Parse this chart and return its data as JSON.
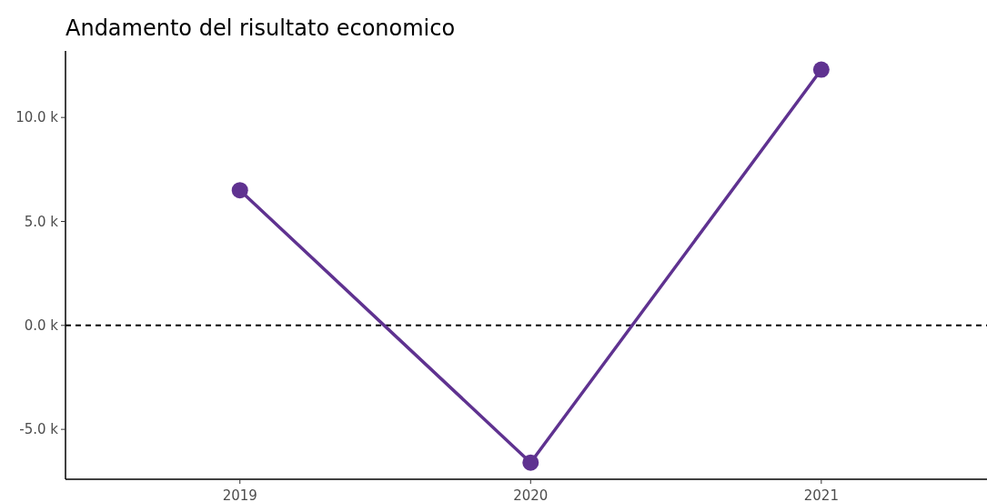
{
  "chart_data": {
    "type": "line",
    "title": "Andamento del risultato economico",
    "categories": [
      "2019",
      "2020",
      "2021"
    ],
    "series": [
      {
        "color": "#5f3290",
        "values": [
          6500,
          -6600,
          12300
        ]
      }
    ],
    "ylim": [
      -7400,
      13200
    ],
    "yticks": [
      {
        "value": -5000,
        "label": "-5.0 k"
      },
      {
        "value": 0,
        "label": "0.0 k"
      },
      {
        "value": 5000,
        "label": "5.0 k"
      },
      {
        "value": 10000,
        "label": "10.0 k"
      }
    ],
    "ref_lines": [
      {
        "axis": "y",
        "value": 0,
        "color": "#000000",
        "line_style": "dashed"
      }
    ],
    "marker": "circle",
    "line_style": "solid"
  }
}
